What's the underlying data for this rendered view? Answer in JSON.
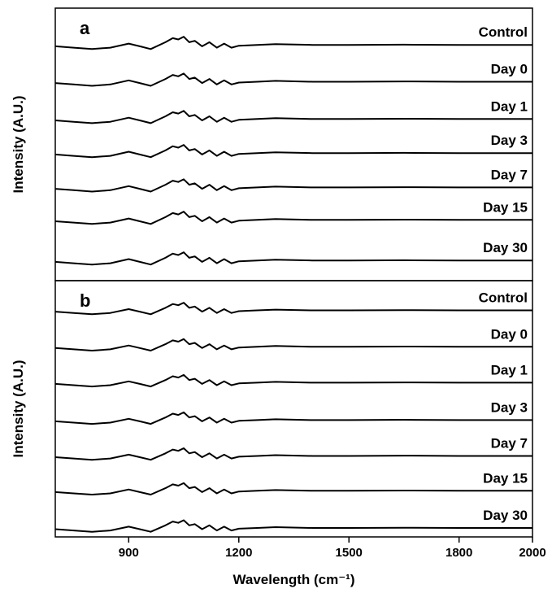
{
  "chart_data": [
    {
      "type": "line",
      "label": "a",
      "ylabel": "Intensity (A.U.)",
      "xlim": [
        700,
        2000
      ],
      "ylim": [
        0,
        10
      ],
      "color": "#000000",
      "x": [
        700,
        750,
        800,
        850,
        900,
        930,
        960,
        1000,
        1020,
        1035,
        1050,
        1065,
        1080,
        1100,
        1120,
        1140,
        1160,
        1180,
        1200,
        1250,
        1300,
        1400,
        1500,
        1650,
        1800,
        2000
      ],
      "series": [
        {
          "name": "Control",
          "values": [
            8.6,
            8.55,
            8.5,
            8.55,
            8.7,
            8.6,
            8.5,
            8.75,
            8.9,
            8.85,
            8.95,
            8.75,
            8.8,
            8.6,
            8.75,
            8.55,
            8.7,
            8.55,
            8.62,
            8.65,
            8.68,
            8.65,
            8.65,
            8.66,
            8.65,
            8.65
          ]
        },
        {
          "name": "Day 0",
          "values": [
            7.25,
            7.2,
            7.15,
            7.2,
            7.35,
            7.25,
            7.15,
            7.4,
            7.55,
            7.5,
            7.6,
            7.4,
            7.45,
            7.25,
            7.4,
            7.2,
            7.35,
            7.2,
            7.27,
            7.3,
            7.33,
            7.3,
            7.3,
            7.31,
            7.3,
            7.3
          ]
        },
        {
          "name": "Day 1",
          "values": [
            5.88,
            5.83,
            5.78,
            5.83,
            5.98,
            5.88,
            5.78,
            6.03,
            6.18,
            6.13,
            6.23,
            6.03,
            6.08,
            5.88,
            6.03,
            5.83,
            5.98,
            5.83,
            5.9,
            5.93,
            5.96,
            5.93,
            5.93,
            5.94,
            5.93,
            5.93
          ]
        },
        {
          "name": "Day 3",
          "values": [
            4.63,
            4.58,
            4.53,
            4.58,
            4.73,
            4.63,
            4.53,
            4.78,
            4.93,
            4.88,
            4.98,
            4.78,
            4.83,
            4.63,
            4.78,
            4.58,
            4.73,
            4.58,
            4.65,
            4.68,
            4.71,
            4.68,
            4.68,
            4.69,
            4.68,
            4.68
          ]
        },
        {
          "name": "Day 7",
          "values": [
            3.37,
            3.32,
            3.27,
            3.32,
            3.47,
            3.37,
            3.27,
            3.52,
            3.67,
            3.62,
            3.72,
            3.52,
            3.57,
            3.37,
            3.52,
            3.32,
            3.47,
            3.32,
            3.39,
            3.42,
            3.45,
            3.42,
            3.42,
            3.43,
            3.42,
            3.42
          ]
        },
        {
          "name": "Day 15",
          "values": [
            2.18,
            2.13,
            2.08,
            2.13,
            2.28,
            2.18,
            2.08,
            2.33,
            2.48,
            2.43,
            2.53,
            2.33,
            2.38,
            2.18,
            2.33,
            2.13,
            2.28,
            2.13,
            2.2,
            2.23,
            2.26,
            2.23,
            2.23,
            2.24,
            2.23,
            2.23
          ]
        },
        {
          "name": "Day 30",
          "values": [
            0.69,
            0.64,
            0.59,
            0.64,
            0.79,
            0.69,
            0.59,
            0.84,
            0.99,
            0.94,
            1.04,
            0.84,
            0.89,
            0.69,
            0.84,
            0.64,
            0.79,
            0.64,
            0.71,
            0.74,
            0.77,
            0.74,
            0.74,
            0.75,
            0.74,
            0.74
          ]
        }
      ]
    },
    {
      "type": "line",
      "label": "b",
      "ylabel": "Intensity (A.U.)",
      "xlabel": "Wavelength (cm⁻¹)",
      "xlim": [
        700,
        2000
      ],
      "ylim": [
        0,
        10
      ],
      "xticks": [
        900,
        1200,
        1500,
        1800,
        2000
      ],
      "color": "#000000",
      "x": [
        700,
        750,
        800,
        850,
        900,
        930,
        960,
        1000,
        1020,
        1035,
        1050,
        1065,
        1080,
        1100,
        1120,
        1140,
        1160,
        1180,
        1200,
        1250,
        1300,
        1400,
        1500,
        1650,
        1800,
        2000
      ],
      "series": [
        {
          "name": "Control",
          "values": [
            8.79,
            8.74,
            8.69,
            8.74,
            8.89,
            8.79,
            8.69,
            8.94,
            9.09,
            9.04,
            9.14,
            8.94,
            8.99,
            8.79,
            8.94,
            8.74,
            8.89,
            8.74,
            8.81,
            8.84,
            8.87,
            8.84,
            8.84,
            8.85,
            8.84,
            8.84
          ]
        },
        {
          "name": "Day 0",
          "values": [
            7.37,
            7.32,
            7.27,
            7.32,
            7.47,
            7.37,
            7.27,
            7.52,
            7.67,
            7.62,
            7.72,
            7.52,
            7.57,
            7.37,
            7.52,
            7.32,
            7.47,
            7.32,
            7.39,
            7.42,
            7.45,
            7.42,
            7.42,
            7.43,
            7.42,
            7.42
          ]
        },
        {
          "name": "Day 1",
          "values": [
            5.97,
            5.92,
            5.87,
            5.92,
            6.07,
            5.97,
            5.87,
            6.12,
            6.27,
            6.22,
            6.32,
            6.12,
            6.17,
            5.97,
            6.12,
            5.92,
            6.07,
            5.92,
            5.99,
            6.02,
            6.05,
            6.02,
            6.02,
            6.03,
            6.02,
            6.02
          ]
        },
        {
          "name": "Day 3",
          "values": [
            4.51,
            4.46,
            4.41,
            4.46,
            4.61,
            4.51,
            4.41,
            4.66,
            4.81,
            4.76,
            4.86,
            4.66,
            4.71,
            4.51,
            4.66,
            4.46,
            4.61,
            4.46,
            4.53,
            4.56,
            4.59,
            4.56,
            4.56,
            4.57,
            4.56,
            4.56
          ]
        },
        {
          "name": "Day 7",
          "values": [
            3.11,
            3.06,
            3.01,
            3.06,
            3.21,
            3.11,
            3.01,
            3.26,
            3.41,
            3.36,
            3.46,
            3.26,
            3.31,
            3.11,
            3.26,
            3.06,
            3.21,
            3.06,
            3.13,
            3.16,
            3.19,
            3.16,
            3.16,
            3.17,
            3.16,
            3.16
          ]
        },
        {
          "name": "Day 15",
          "values": [
            1.75,
            1.7,
            1.65,
            1.7,
            1.85,
            1.75,
            1.65,
            1.9,
            2.05,
            2.0,
            2.1,
            1.9,
            1.95,
            1.75,
            1.9,
            1.7,
            1.85,
            1.7,
            1.77,
            1.8,
            1.83,
            1.8,
            1.8,
            1.81,
            1.8,
            1.8
          ]
        },
        {
          "name": "Day 30",
          "values": [
            0.3,
            0.25,
            0.2,
            0.25,
            0.4,
            0.3,
            0.2,
            0.45,
            0.6,
            0.55,
            0.65,
            0.45,
            0.5,
            0.3,
            0.45,
            0.25,
            0.4,
            0.25,
            0.32,
            0.35,
            0.38,
            0.35,
            0.35,
            0.36,
            0.35,
            0.35
          ]
        }
      ]
    }
  ]
}
